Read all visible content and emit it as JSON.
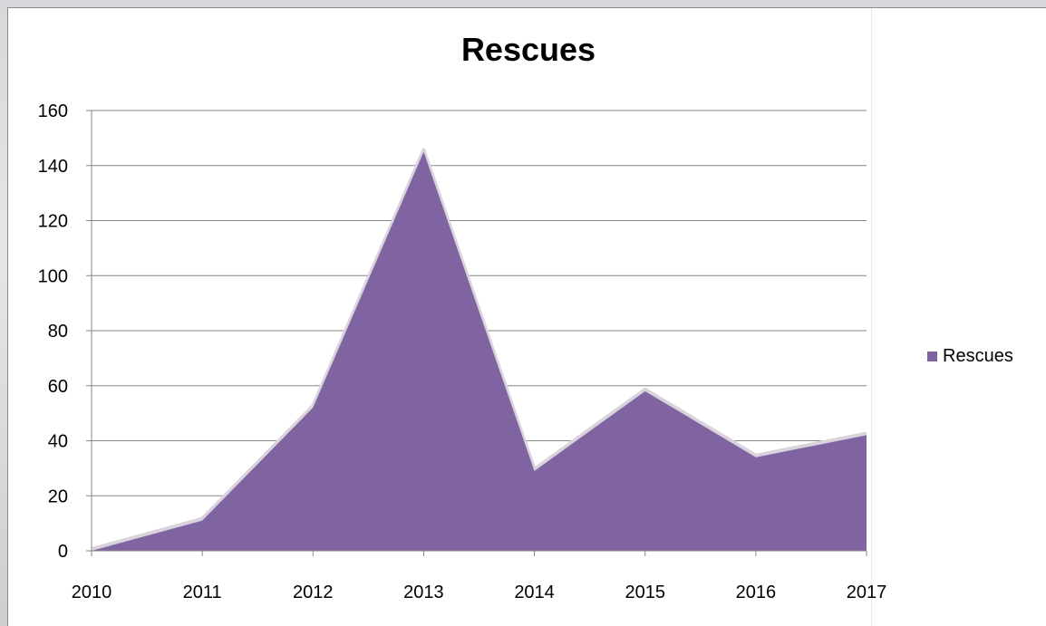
{
  "chart_data": {
    "type": "area",
    "title": "Rescues",
    "xlabel": "",
    "ylabel": "",
    "x": [
      "2010",
      "2011",
      "2012",
      "2013",
      "2014",
      "2015",
      "2016",
      "2017"
    ],
    "series": [
      {
        "name": "Rescues",
        "values": [
          0,
          11,
          52,
          145,
          29,
          58,
          34,
          42
        ],
        "color": "#8064a2"
      }
    ],
    "ylim": [
      0,
      160
    ],
    "yticks": [
      0,
      20,
      40,
      60,
      80,
      100,
      120,
      140,
      160
    ],
    "grid": true,
    "legend_position": "right"
  }
}
